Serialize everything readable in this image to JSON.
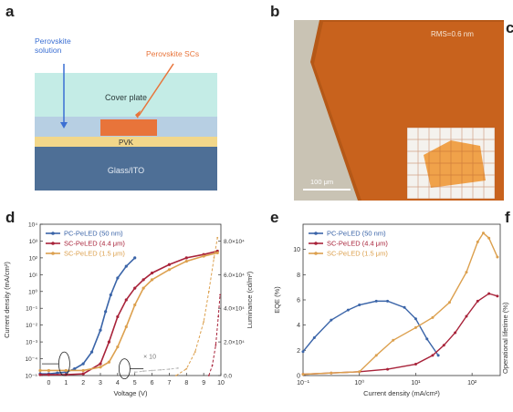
{
  "panels": {
    "a": {
      "label": "a",
      "perovskite_solution": "Perovskite\nsolution",
      "perovskite_scs": "Perovskite SCs",
      "cover_plate": "Cover plate",
      "pvk": "PVK",
      "glass_ito": "Glass/ITO",
      "colors": {
        "cover": "#c4ece6",
        "channel": "#b7cfe3",
        "sc": "#e8743a",
        "pvk": "#f2d78a",
        "glass": "#4e6f96",
        "arrow_blue": "#3b6fd3",
        "arrow_orange": "#e8743a"
      }
    },
    "b": {
      "label": "b",
      "rms": "RMS=0.6 nm",
      "scale_bar": "100 μm",
      "colors": {
        "crystal": "#c8621d",
        "background": "#c9c3b4",
        "inset_crystal": "#f0a24a"
      }
    },
    "c_label": "c",
    "f_label": "f",
    "f_ylabel": "Operational lifetime (%)"
  },
  "legend": [
    {
      "name": "PC-PeLED (50 nm)",
      "color": "#3a64a8"
    },
    {
      "name": "SC-PeLED (4.4 μm)",
      "color": "#a8233a"
    },
    {
      "name": "SC-PeLED (1.5 μm)",
      "color": "#dca04e"
    }
  ],
  "chart_data": [
    {
      "id": "d",
      "panel_label": "d",
      "type": "line",
      "xlabel": "Voltage (V)",
      "ylabel": "Current density (mA/cm²)",
      "y2label": "Luminance (cd/m²)",
      "xlim": [
        -0.5,
        10
      ],
      "ylim_log10": [
        -5,
        4
      ],
      "y2lim": [
        0,
        90000
      ],
      "x_ticks": [
        "0",
        "1",
        "2",
        "3",
        "4",
        "5",
        "6",
        "7",
        "8",
        "9",
        "10"
      ],
      "y_ticks": [
        "10⁻⁵",
        "10⁻⁴",
        "10⁻³",
        "10⁻²",
        "10⁻¹",
        "10⁰",
        "10¹",
        "10²",
        "10³",
        "10⁴"
      ],
      "y2_ticks": [
        "0.0",
        "2.0×10⁴",
        "4.0×10⁴",
        "6.0×10⁴",
        "8.0×10⁴"
      ],
      "annotation": "× 10",
      "series": [
        {
          "name": "PC-PeLED (50 nm)",
          "axis": "left",
          "x": [
            -0.5,
            0,
            0.5,
            1,
            1.5,
            2,
            2.5,
            3,
            3.3,
            3.6,
            4,
            4.5,
            5
          ],
          "y_log10": [
            -4.9,
            -4.9,
            -4.85,
            -4.8,
            -4.6,
            -4.3,
            -3.6,
            -2.3,
            -1.2,
            -0.2,
            0.8,
            1.5,
            2.0
          ]
        },
        {
          "name": "SC-PeLED (4.4 μm)",
          "axis": "left",
          "x": [
            -0.5,
            0,
            1,
            2,
            3,
            3.5,
            4,
            4.5,
            5,
            5.5,
            6,
            7,
            8,
            9,
            9.8
          ],
          "y_log10": [
            -4.95,
            -4.95,
            -4.95,
            -4.9,
            -4.3,
            -3.0,
            -1.5,
            -0.5,
            0.2,
            0.7,
            1.1,
            1.6,
            2.0,
            2.2,
            2.4
          ]
        },
        {
          "name": "SC-PeLED (1.5 μm)",
          "axis": "left",
          "x": [
            -0.5,
            0,
            1,
            2,
            3,
            3.5,
            4,
            4.5,
            5,
            5.5,
            6,
            7,
            8,
            9,
            9.8
          ],
          "y_log10": [
            -4.7,
            -4.7,
            -4.7,
            -4.7,
            -4.5,
            -4.2,
            -3.3,
            -2.1,
            -0.8,
            0.2,
            0.7,
            1.3,
            1.8,
            2.1,
            2.3
          ]
        },
        {
          "name": "Luminance SC-PeLED (1.5 μm)",
          "axis": "right",
          "dashed": true,
          "x": [
            7.4,
            8,
            8.5,
            9,
            9.3,
            9.6,
            9.8
          ],
          "y": [
            0,
            4000,
            14000,
            32000,
            50000,
            70000,
            82000
          ]
        },
        {
          "name": "Luminance SC-PeLED (4.4 μm)",
          "axis": "right",
          "dashed": true,
          "x": [
            9.3,
            9.5,
            9.7,
            9.85,
            9.95
          ],
          "y": [
            0,
            6000,
            18000,
            35000,
            48000
          ]
        },
        {
          "name": "Luminance PC-PeLED (50 nm) × 10",
          "axis": "right",
          "dashed": true,
          "x": [
            5,
            5.5,
            6,
            6.5,
            7,
            7.5
          ],
          "y": [
            2000,
            2600,
            3000,
            3400,
            3800,
            4400
          ]
        }
      ]
    },
    {
      "id": "e",
      "panel_label": "e",
      "type": "line",
      "xlabel": "Current density (mA/cm²)",
      "ylabel": "EQE (%)",
      "xlim_log10": [
        -1,
        2.5
      ],
      "ylim": [
        0,
        12
      ],
      "x_ticks": [
        "10⁻¹",
        "10⁰",
        "10¹",
        "10²"
      ],
      "y_ticks": [
        "0",
        "2",
        "4",
        "6",
        "8",
        "10"
      ],
      "series": [
        {
          "name": "PC-PeLED (50 nm)",
          "x_log10": [
            -1,
            -0.8,
            -0.5,
            -0.2,
            0,
            0.3,
            0.5,
            0.8,
            1,
            1.2,
            1.4
          ],
          "y": [
            1.9,
            3,
            4.4,
            5.2,
            5.6,
            5.9,
            5.9,
            5.4,
            4.5,
            2.9,
            1.6
          ]
        },
        {
          "name": "SC-PeLED (4.4 μm)",
          "x_log10": [
            -1,
            -0.5,
            0,
            0.5,
            1,
            1.3,
            1.5,
            1.7,
            1.9,
            2.1,
            2.3,
            2.45
          ],
          "y": [
            0.1,
            0.2,
            0.3,
            0.5,
            0.9,
            1.6,
            2.4,
            3.4,
            4.7,
            5.9,
            6.5,
            6.3
          ]
        },
        {
          "name": "SC-PeLED (1.5 μm)",
          "x_log10": [
            -1,
            -0.5,
            0,
            0.3,
            0.6,
            1,
            1.3,
            1.6,
            1.9,
            2.1,
            2.2,
            2.3,
            2.45
          ],
          "y": [
            0.1,
            0.2,
            0.3,
            1.6,
            2.8,
            3.8,
            4.6,
            5.8,
            8.2,
            10.6,
            11.3,
            10.9,
            9.4
          ]
        }
      ]
    }
  ]
}
